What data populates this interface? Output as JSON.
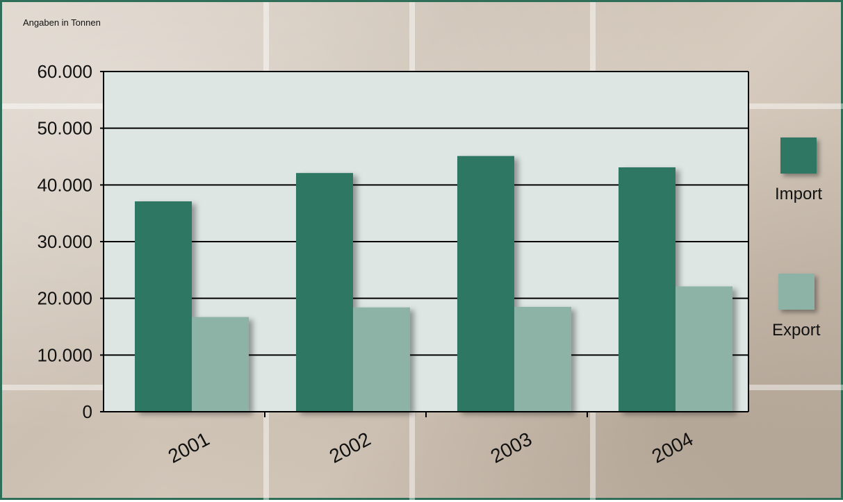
{
  "units_note": "Angaben in Tonnen",
  "colors": {
    "import": "#2f7762",
    "export": "#8db3a6",
    "plot_bg": "#dde6e3"
  },
  "legend": {
    "import": "Import",
    "export": "Export"
  },
  "chart_data": {
    "type": "bar",
    "title": "",
    "xlabel": "",
    "ylabel": "",
    "categories": [
      "2001",
      "2002",
      "2003",
      "2004"
    ],
    "series": [
      {
        "name": "Import",
        "values": [
          37100,
          42100,
          45100,
          43100
        ]
      },
      {
        "name": "Export",
        "values": [
          16700,
          18400,
          18500,
          22100
        ]
      }
    ],
    "ylim": [
      0,
      60000
    ],
    "yticks": [
      0,
      10000,
      20000,
      30000,
      40000,
      50000,
      60000
    ],
    "ytick_labels": [
      "0",
      "10.000",
      "20.000",
      "30.000",
      "40.000",
      "50.000",
      "60.000"
    ],
    "grid": true,
    "legend_position": "right"
  }
}
